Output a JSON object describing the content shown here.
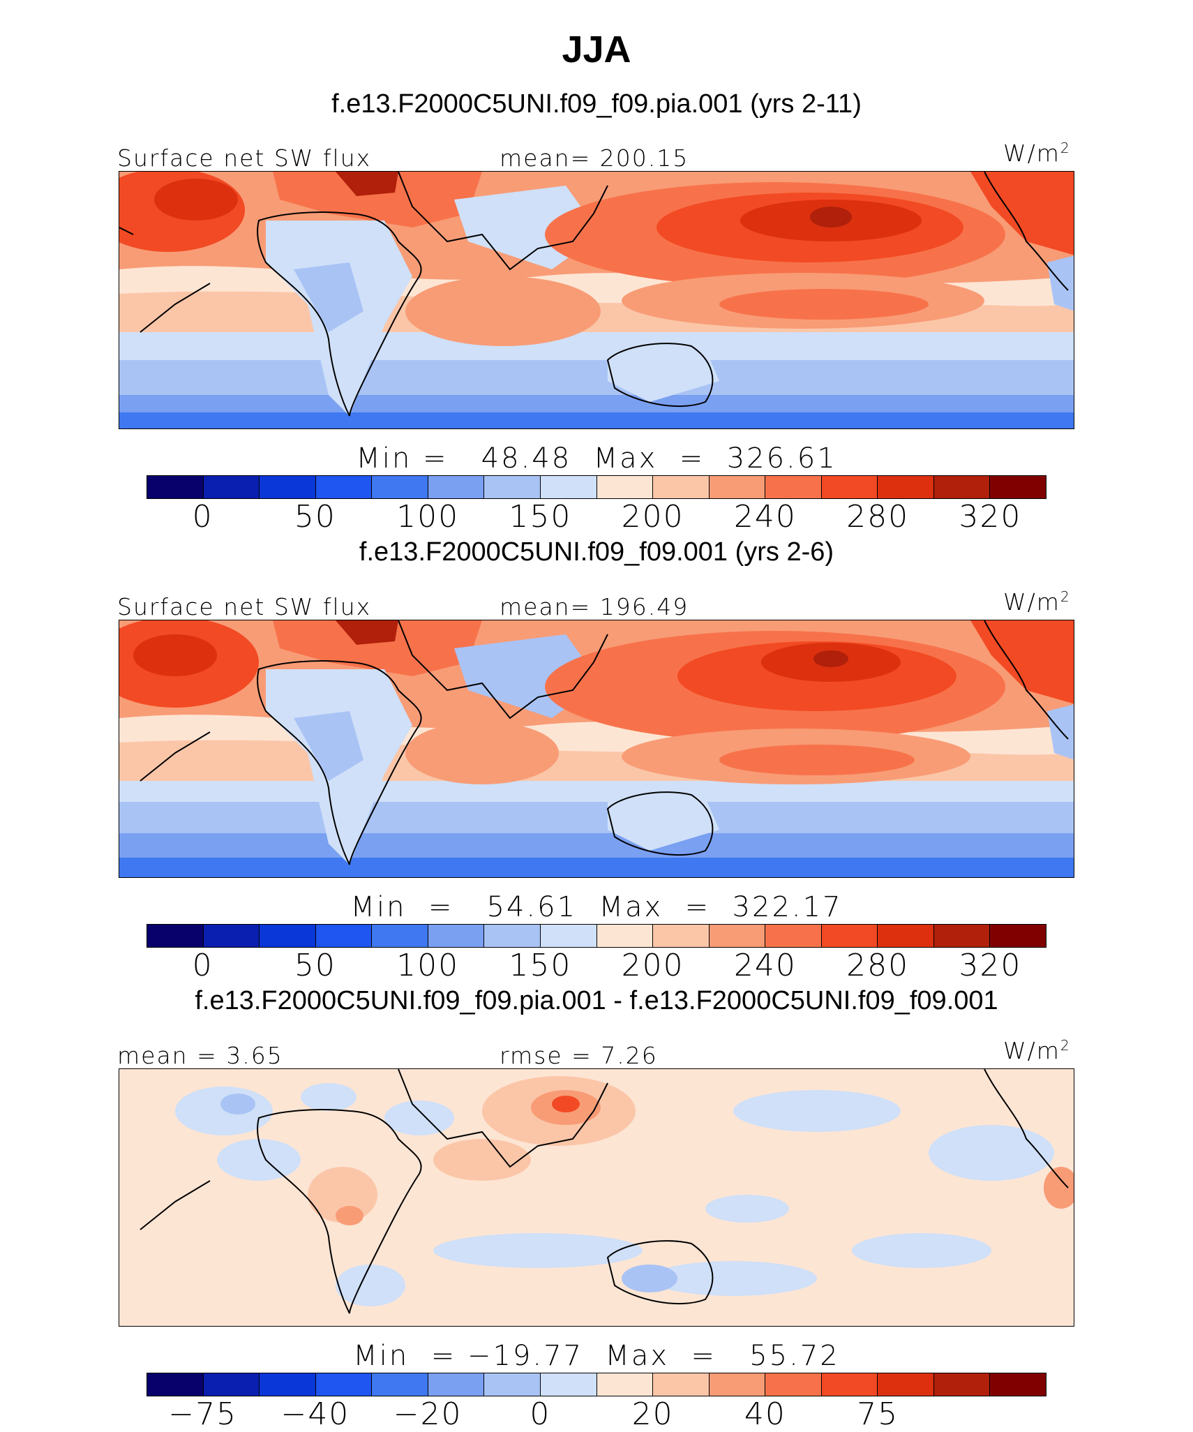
{
  "title": "JJA",
  "units": "W/m",
  "units_exp": "2",
  "colors": {
    "abs": [
      "#08006b",
      "#0a1fb0",
      "#0a37d8",
      "#1f55f0",
      "#3f78f0",
      "#7aa0f2",
      "#a9c3f5",
      "#cfe0f8",
      "#fde5d4",
      "#fbc6a8",
      "#f89c76",
      "#f7724a",
      "#f24a24",
      "#dc300f",
      "#b0200a",
      "#800000"
    ],
    "diff": [
      "#08006b",
      "#0a1fb0",
      "#0a37d8",
      "#1f55f0",
      "#3f78f0",
      "#7aa0f2",
      "#a9c3f5",
      "#cfe0f8",
      "#fde5d4",
      "#fbc6a8",
      "#f89c76",
      "#f7724a",
      "#f24a24",
      "#dc300f",
      "#b0200a",
      "#800000"
    ]
  },
  "panels": [
    {
      "case": "f.e13.F2000C5UNI.f09_f09.pia.001 (yrs 2-11)",
      "left_label": "Surface net SW flux",
      "center_label": "mean= 200.15",
      "minmax": "Min =   48.48  Max  =  326.61",
      "colorbar_labels": [
        "0",
        "50",
        "100",
        "150",
        "200",
        "240",
        "280",
        "320"
      ]
    },
    {
      "case": "f.e13.F2000C5UNI.f09_f09.001 (yrs 2-6)",
      "left_label": "Surface net SW flux",
      "center_label": "mean= 196.49",
      "minmax": "Min  =   54.61  Max  =  322.17",
      "colorbar_labels": [
        "0",
        "50",
        "100",
        "150",
        "200",
        "240",
        "280",
        "320"
      ]
    },
    {
      "case": "f.e13.F2000C5UNI.f09_f09.pia.001 - f.e13.F2000C5UNI.f09_f09.001",
      "left_label": "mean =    3.65",
      "center_label": "rmse =    7.26",
      "minmax": "Min  = −19.77  Max  =   55.72",
      "colorbar_labels": [
        "−75",
        "−40",
        "−20",
        "0",
        "20",
        "40",
        "75"
      ]
    }
  ]
}
